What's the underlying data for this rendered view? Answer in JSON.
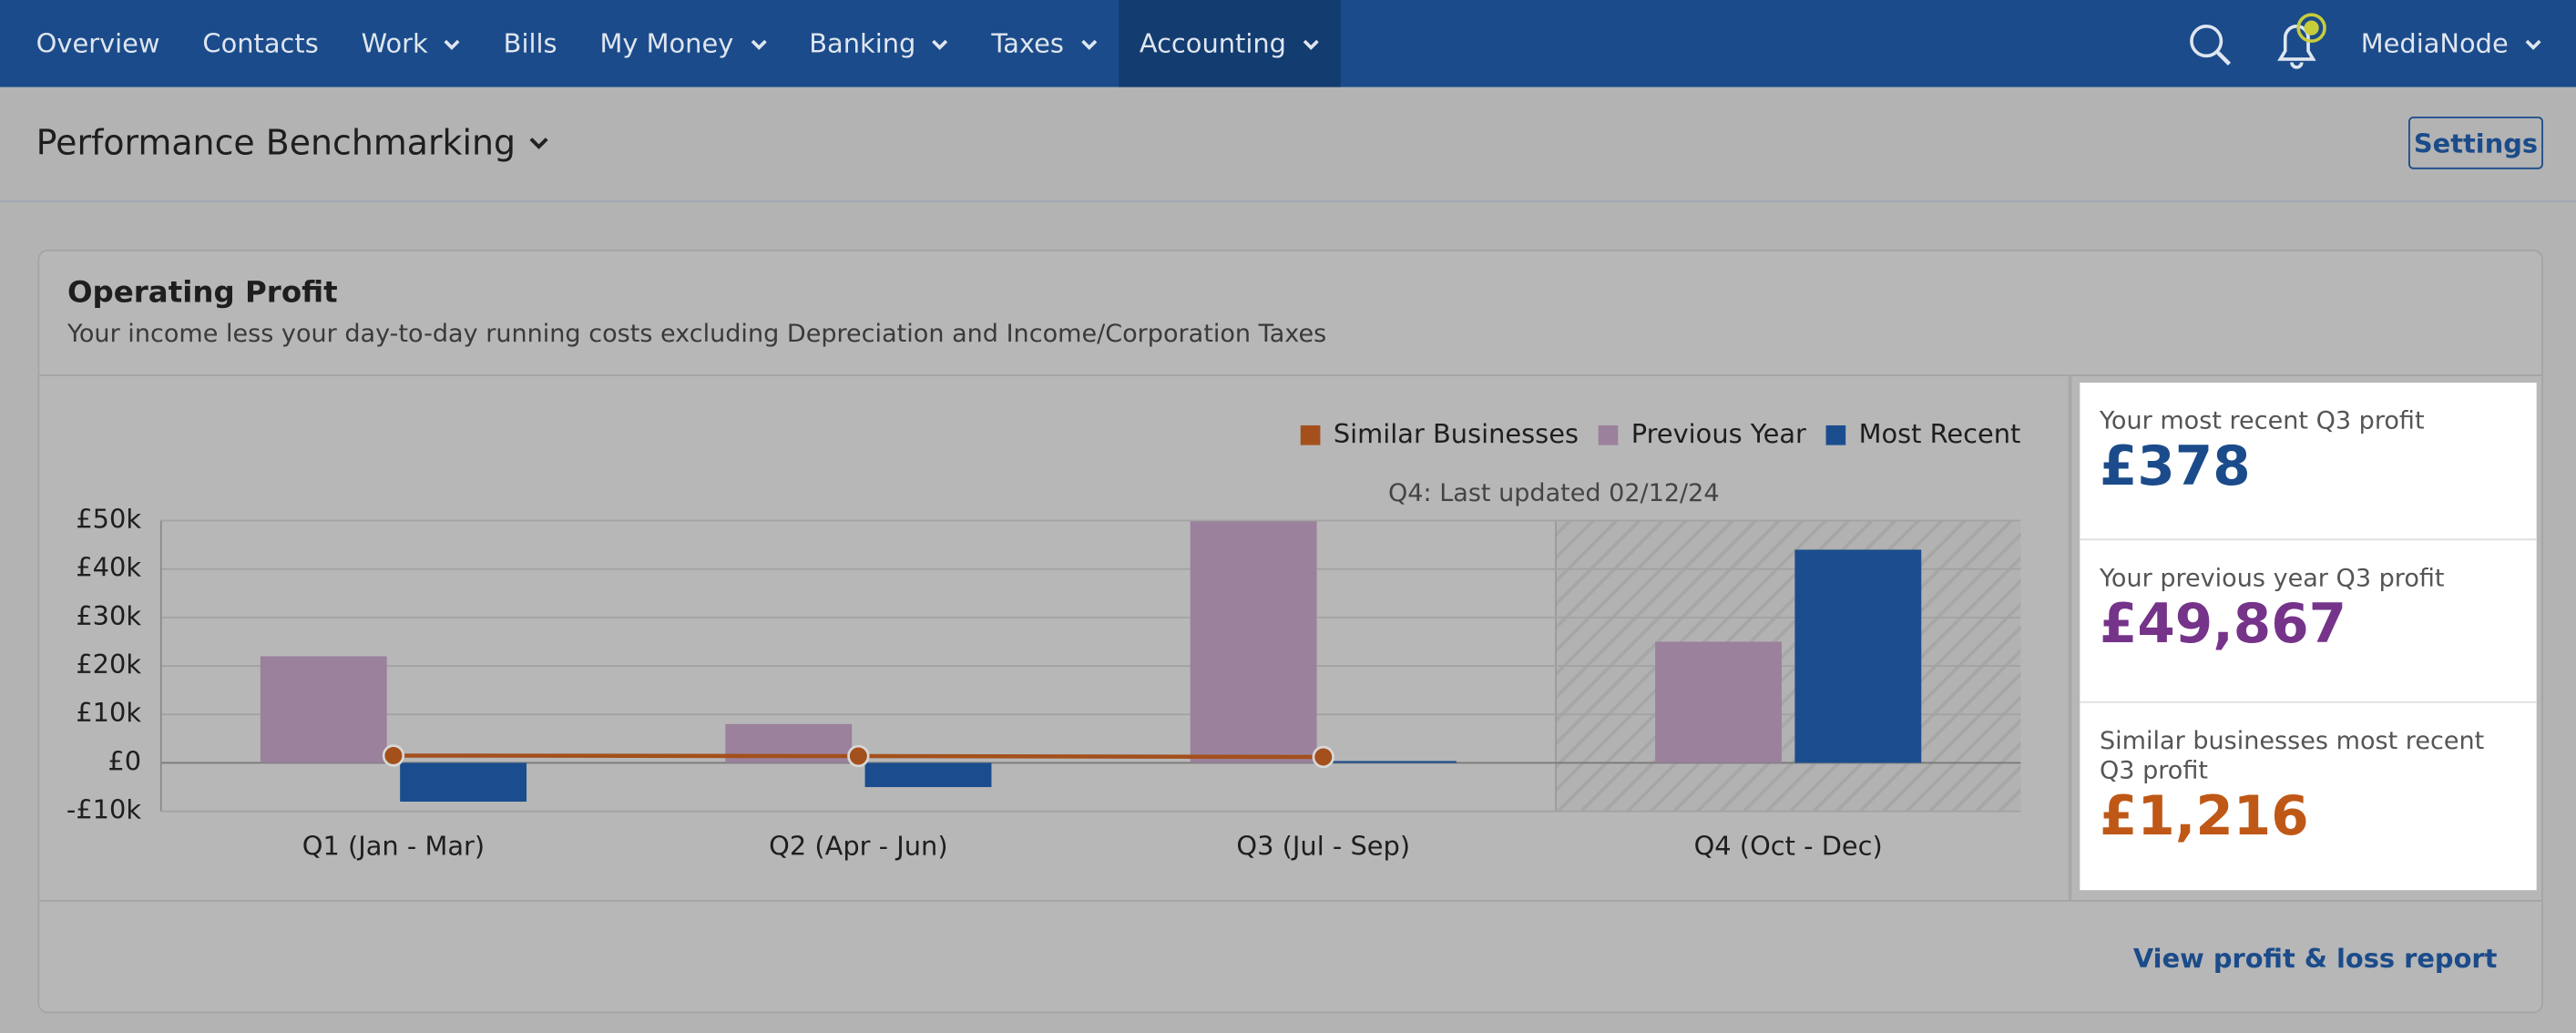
{
  "nav": {
    "items": [
      {
        "label": "Overview",
        "dropdown": false
      },
      {
        "label": "Contacts",
        "dropdown": false
      },
      {
        "label": "Work",
        "dropdown": true
      },
      {
        "label": "Bills",
        "dropdown": false
      },
      {
        "label": "My Money",
        "dropdown": true
      },
      {
        "label": "Banking",
        "dropdown": true
      },
      {
        "label": "Taxes",
        "dropdown": true
      },
      {
        "label": "Accounting",
        "dropdown": true,
        "active": true
      }
    ],
    "account": "MediaNode"
  },
  "header": {
    "title": "Performance Benchmarking",
    "settings": "Settings"
  },
  "card": {
    "title": "Operating Profit",
    "subtitle": "Your income less your day-to-day running costs excluding Depreciation and Income/Corporation Taxes",
    "footer_link": "View profit & loss report"
  },
  "summary": {
    "items": [
      {
        "label": "Your most recent Q3 profit",
        "value": "£378",
        "color": "#1b4b8a"
      },
      {
        "label": "Your previous year Q3 profit",
        "value": "£49,867",
        "color": "#76338a"
      },
      {
        "label": "Similar businesses most recent Q3 profit",
        "value": "£1,216",
        "color": "#bf5817"
      }
    ]
  },
  "chart_data": {
    "type": "bar",
    "annotation": "Q4: Last updated 02/12/24",
    "categories": [
      "Q1 (Jan - Mar)",
      "Q2 (Apr - Jun)",
      "Q3 (Jul - Sep)",
      "Q4 (Oct - Dec)"
    ],
    "series": [
      {
        "name": "Similar Businesses",
        "type": "line",
        "color": "#a4501c",
        "values": [
          1500,
          1400,
          1216,
          null
        ]
      },
      {
        "name": "Previous Year",
        "color": "#9b819b",
        "values": [
          22000,
          8000,
          49867,
          25000
        ]
      },
      {
        "name": "Most Recent",
        "color": "#1b4d8e",
        "values": [
          -8000,
          -5000,
          378,
          44000
        ]
      }
    ],
    "ylim": [
      -10000,
      50000
    ],
    "yticks": [
      {
        "value": -10000,
        "label": "-£10k"
      },
      {
        "value": 0,
        "label": "£0"
      },
      {
        "value": 10000,
        "label": "£10k"
      },
      {
        "value": 20000,
        "label": "£20k"
      },
      {
        "value": 30000,
        "label": "£30k"
      },
      {
        "value": 40000,
        "label": "£40k"
      },
      {
        "value": 50000,
        "label": "£50k"
      }
    ],
    "grid": true
  }
}
